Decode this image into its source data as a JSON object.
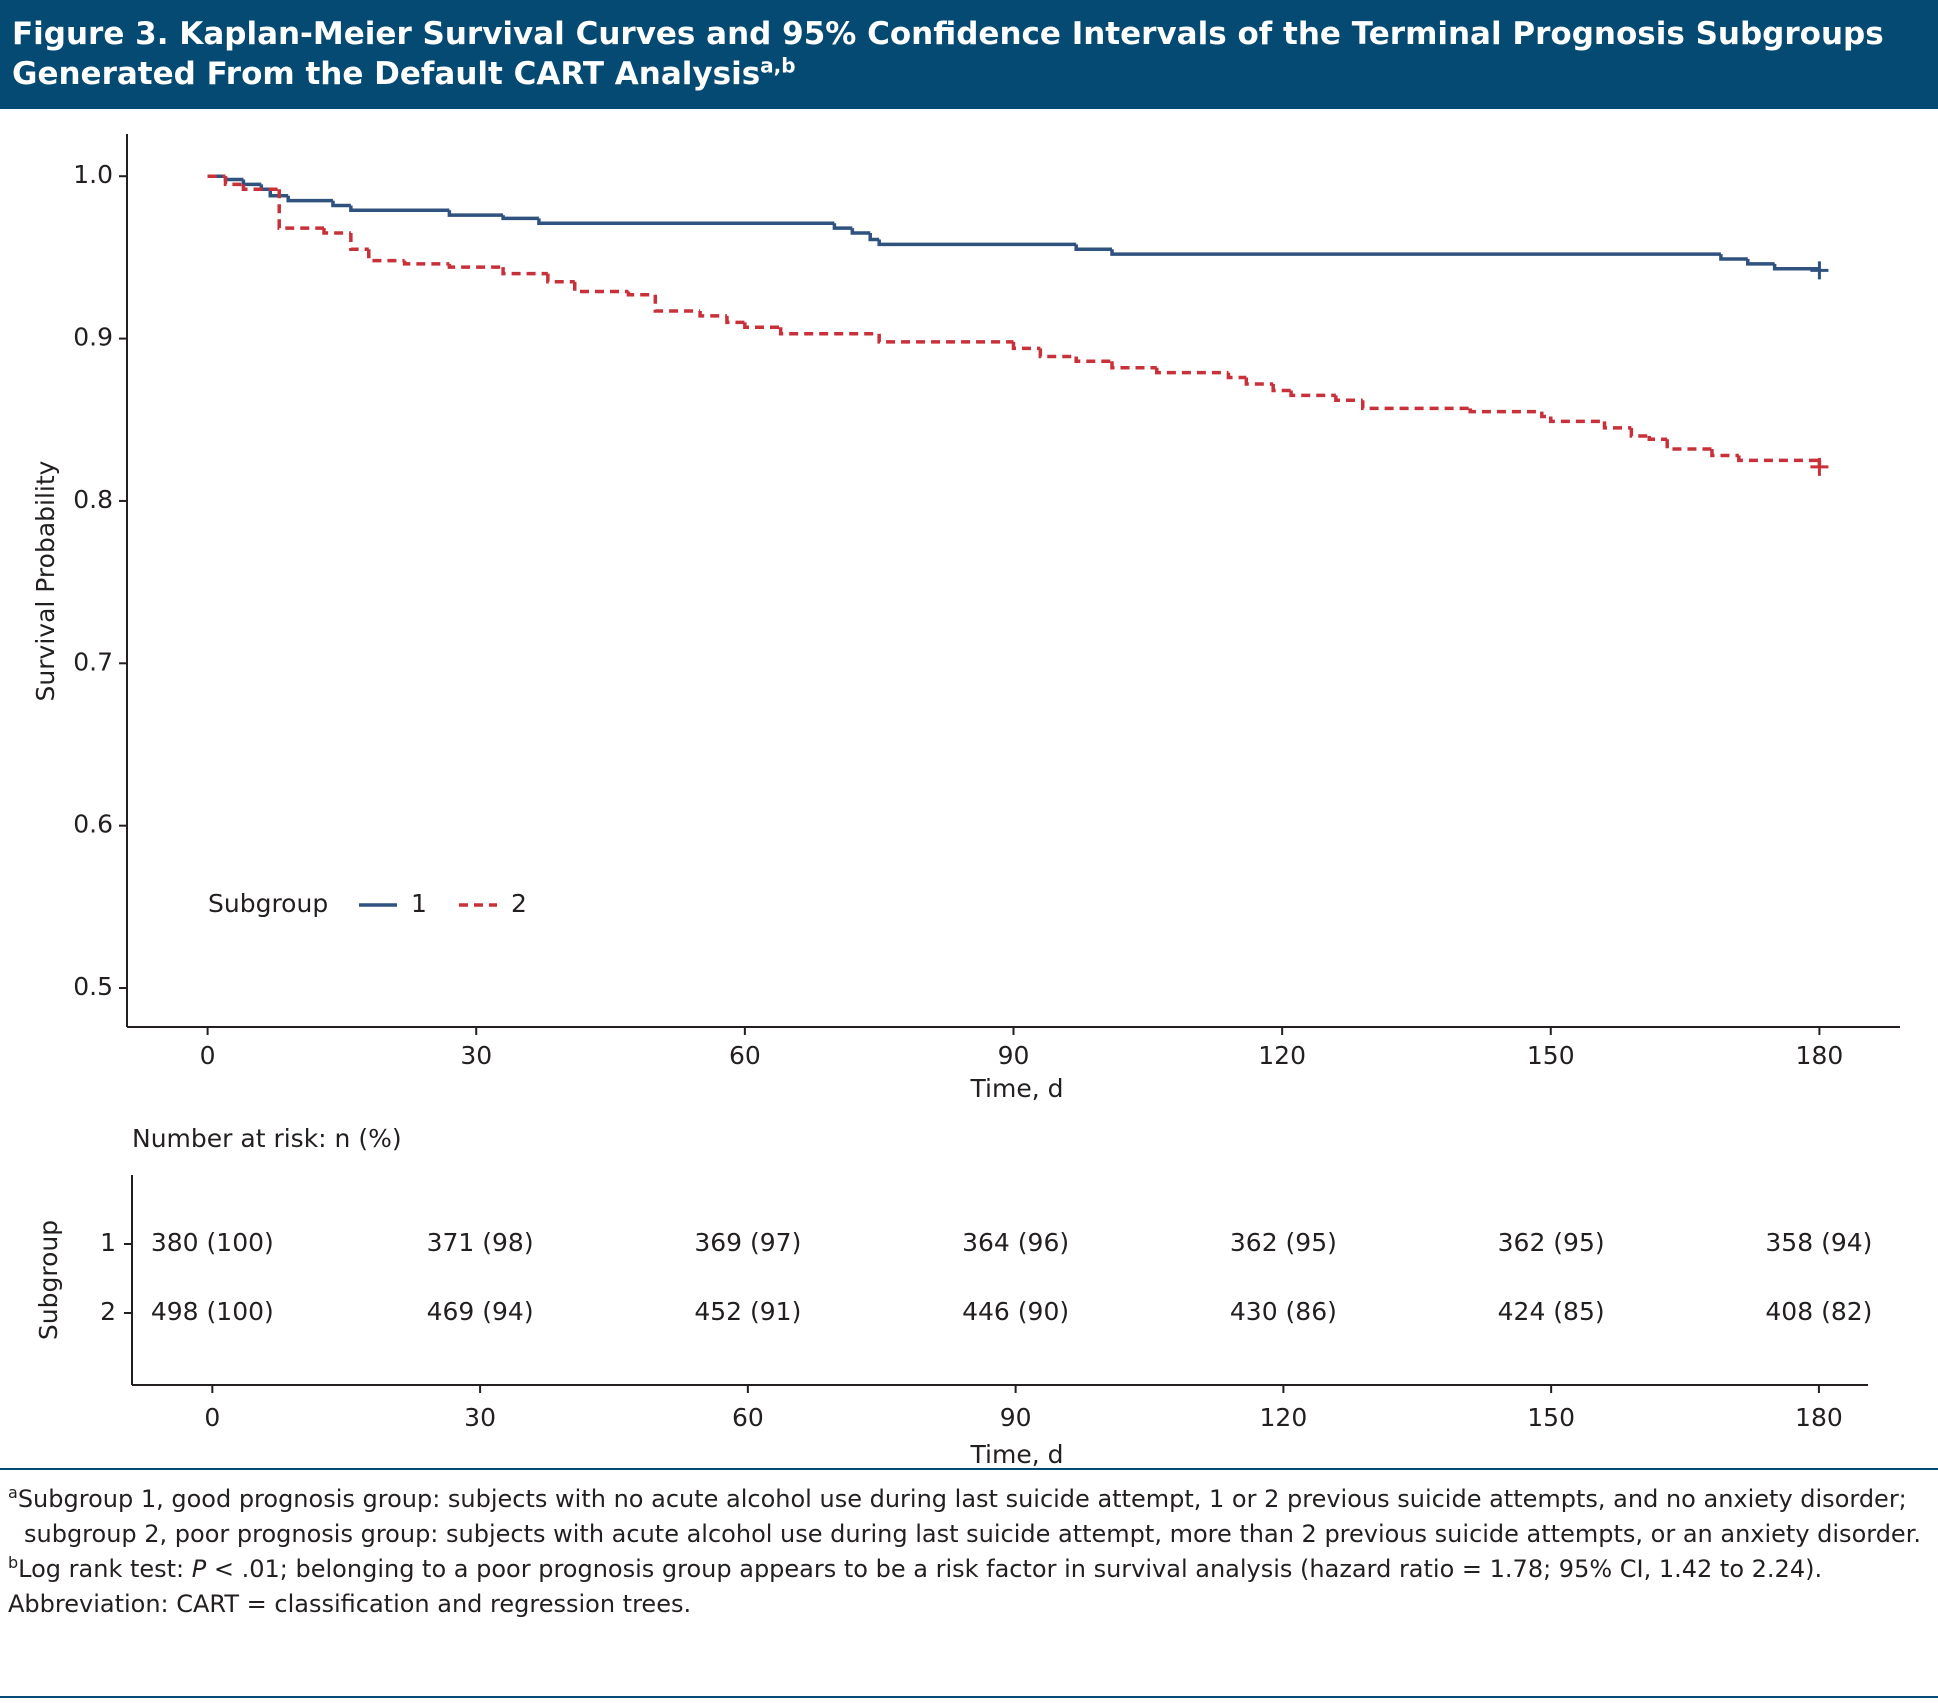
{
  "header": {
    "title": "Figure 3. Kaplan-Meier Survival Curves and 95% Confidence Intervals of the Terminal Prognosis Subgroups Generated From the Default CART Analysis",
    "superscript": "a,b"
  },
  "chart_data": {
    "type": "step",
    "ylabel": "Survival Probability",
    "xlabel": "Time, d",
    "xlim": [
      -9,
      189
    ],
    "ylim": [
      0.476,
      1.026
    ],
    "xticks": [
      0,
      30,
      60,
      90,
      120,
      150,
      180
    ],
    "yticks": [
      0.5,
      0.6,
      0.7,
      0.8,
      0.9,
      {
        "value": 1,
        "label": "1.0"
      }
    ],
    "legend_title": "Subgroup",
    "series": [
      {
        "name": "1",
        "color": "#30527f",
        "dashed": false,
        "x": [
          0,
          2,
          4,
          6,
          7,
          9,
          14,
          16,
          27,
          33,
          37,
          70,
          72,
          74,
          75,
          97,
          101,
          169,
          172,
          175,
          180
        ],
        "values": [
          1,
          0.998,
          0.995,
          0.992,
          0.988,
          0.985,
          0.982,
          0.979,
          0.976,
          0.974,
          0.971,
          0.968,
          0.965,
          0.961,
          0.958,
          0.955,
          0.952,
          0.949,
          0.946,
          0.943,
          0.942
        ]
      },
      {
        "name": "2",
        "color": "#c8303a",
        "dashed": true,
        "x": [
          0,
          2,
          4,
          8,
          13,
          16,
          18,
          22,
          27,
          33,
          38,
          41,
          47,
          50,
          55,
          58,
          60,
          64,
          75,
          90,
          93,
          97,
          101,
          106,
          114,
          116,
          119,
          121,
          126,
          129,
          141,
          149,
          150,
          156,
          159,
          161,
          163,
          168,
          171,
          180
        ],
        "values": [
          1,
          0.995,
          0.992,
          0.968,
          0.965,
          0.955,
          0.948,
          0.946,
          0.944,
          0.94,
          0.935,
          0.929,
          0.927,
          0.917,
          0.914,
          0.91,
          0.907,
          0.903,
          0.898,
          0.894,
          0.889,
          0.886,
          0.882,
          0.879,
          0.876,
          0.872,
          0.868,
          0.865,
          0.862,
          0.857,
          0.855,
          0.852,
          0.849,
          0.845,
          0.84,
          0.838,
          0.832,
          0.828,
          0.825,
          0.821
        ]
      }
    ]
  },
  "risk_table": {
    "title": "Number at risk: n (%)",
    "ylabel": "Subgroup",
    "xlabel": "Time, d",
    "xlim": [
      -9,
      185.5
    ],
    "xticks": [
      0,
      30,
      60,
      90,
      120,
      150,
      180
    ],
    "rows": [
      {
        "label": "1",
        "cells": [
          "380 (100)",
          "371 (98)",
          "369 (97)",
          "364 (96)",
          "362 (95)",
          "362 (95)",
          "358 (94)"
        ]
      },
      {
        "label": "2",
        "cells": [
          "498 (100)",
          "469 (94)",
          "452 (91)",
          "446 (90)",
          "430 (86)",
          "424 (85)",
          "408 (82)"
        ]
      }
    ]
  },
  "footnotes": [
    {
      "marker": "a",
      "text": "Subgroup 1, good prognosis group: subjects with no acute alcohol use during last suicide attempt, 1 or 2 previous suicide attempts, and no anxiety disorder; subgroup 2, poor prognosis group: subjects with acute alcohol use during last suicide attempt, more than 2 previous suicide attempts, or an anxiety disorder."
    },
    {
      "marker": "b",
      "parts": [
        "Log rank test: ",
        "P",
        " < .01; belonging to a poor prognosis group appears to be a risk factor in survival analysis (hazard ratio = 1.78; 95% CI, 1.42 to 2.24)."
      ]
    },
    {
      "text": "Abbreviation: CART = classification and regression trees."
    }
  ]
}
